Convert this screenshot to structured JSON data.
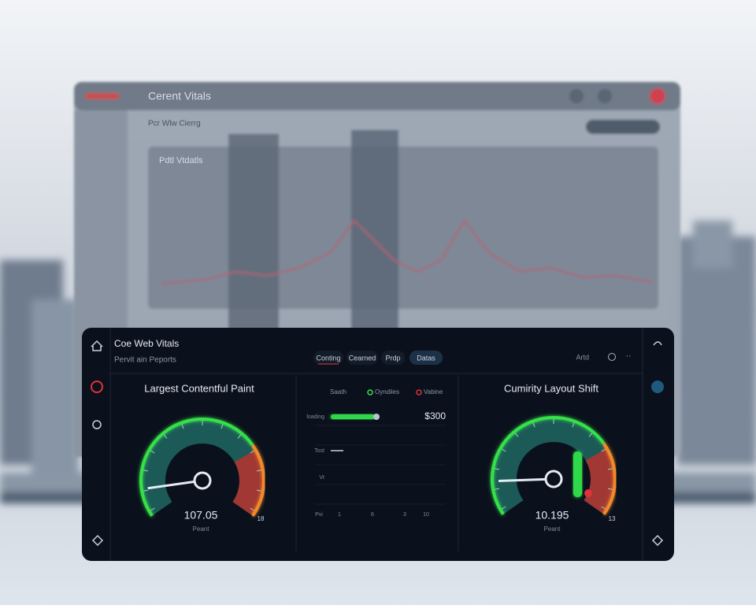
{
  "background_window": {
    "title": "Cerent Vitals",
    "breadcrumb": "Pcr Wlw Cierrg",
    "panel_title": "Pdtl Vtdatls"
  },
  "app": {
    "title": "Coe Web Vitals",
    "subtitle": "Pervit ain Peports",
    "tabs": [
      "Conting",
      "Cearned",
      "Prdp",
      "Datas"
    ],
    "toolbar_label": "Artd",
    "gauges": [
      {
        "title": "Largest Contentful Paint",
        "value": "107.05",
        "caption": "Peant",
        "scale_end": "18"
      },
      {
        "title": "Cumirity Layout Shift",
        "value": "10.195",
        "caption": "Peant",
        "scale_end": "13"
      }
    ],
    "middle": {
      "legend": [
        "Saath",
        "Oyndiles",
        "Vabine"
      ],
      "rows": [
        {
          "label": "loading",
          "value": "$300"
        },
        {
          "label": "Tost"
        },
        {
          "label": "Vt"
        }
      ],
      "axis": [
        "Pvi",
        "1",
        "6",
        "3",
        "10"
      ]
    }
  }
}
